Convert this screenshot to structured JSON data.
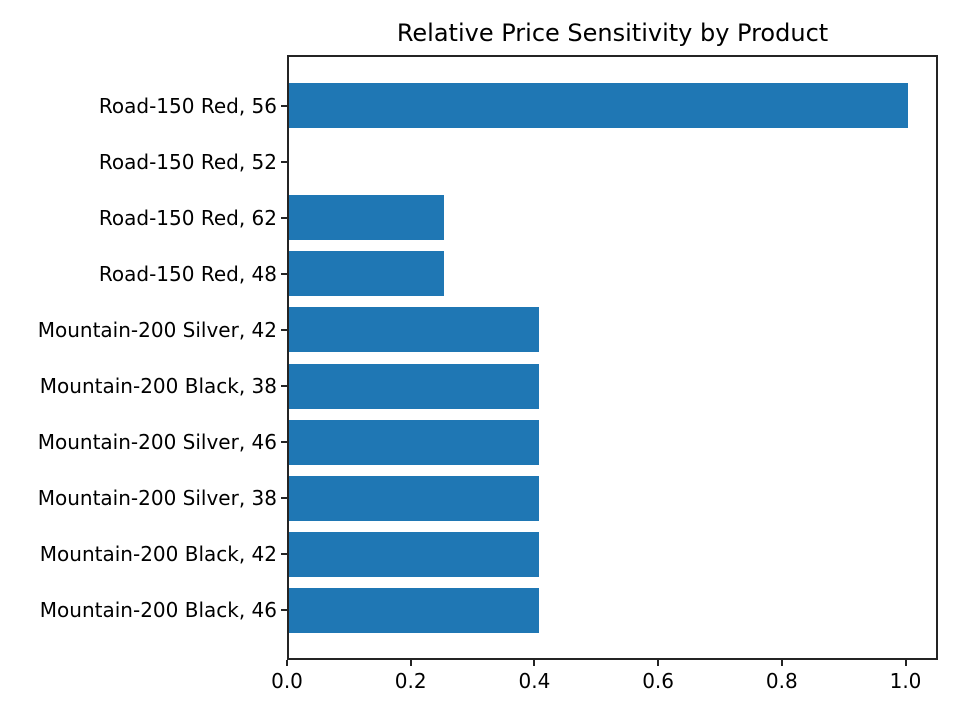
{
  "chart_data": {
    "type": "bar",
    "orientation": "horizontal",
    "title": "Relative Price Sensitivity by Product",
    "categories": [
      "Road-150 Red, 56",
      "Road-150 Red, 52",
      "Road-150 Red, 62",
      "Road-150 Red, 48",
      "Mountain-200 Silver, 42",
      "Mountain-200 Black, 38",
      "Mountain-200 Silver, 46",
      "Mountain-200 Silver, 38",
      "Mountain-200 Black, 42",
      "Mountain-200 Black, 46"
    ],
    "values": [
      1.0,
      0.0,
      0.25,
      0.25,
      0.405,
      0.405,
      0.405,
      0.405,
      0.405,
      0.405
    ],
    "xlabel": "",
    "ylabel": "",
    "xticks": [
      0.0,
      0.2,
      0.4,
      0.6,
      0.8,
      1.0
    ],
    "xtick_labels": [
      "0.0",
      "0.2",
      "0.4",
      "0.6",
      "0.8",
      "1.0"
    ],
    "xlim": [
      0,
      1.053
    ],
    "grid": false,
    "legend": null,
    "colors": {
      "bar": "#1f77b4",
      "axis": "#242424",
      "text": "#000000",
      "background": "#ffffff"
    }
  }
}
